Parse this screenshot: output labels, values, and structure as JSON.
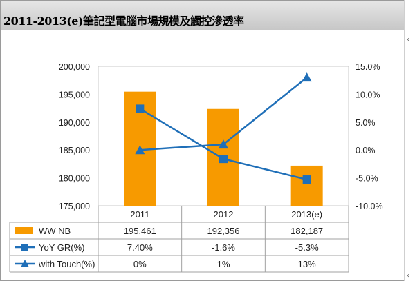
{
  "header": {
    "title": "2011-2013(e)筆記型電腦市場規模及觸控滲透率"
  },
  "side_marks": [
    "‹",
    "‹"
  ],
  "chart_data": {
    "type": "bar",
    "categories": [
      "2011",
      "2012",
      "2013(e)"
    ],
    "series": [
      {
        "name": "WW NB",
        "type": "bar",
        "axis": "left",
        "color": "#f79a00",
        "values": [
          195461,
          192356,
          182187
        ],
        "labels": [
          "195,461",
          "192,356",
          "182,187"
        ]
      },
      {
        "name": "YoY GR(%)",
        "type": "line",
        "axis": "right",
        "marker": "square",
        "color": "#1f6fb8",
        "values": [
          7.4,
          -1.6,
          -5.3
        ],
        "labels": [
          "7.40%",
          "-1.6%",
          "-5.3%"
        ]
      },
      {
        "name": "with Touch(%)",
        "type": "line",
        "axis": "right",
        "marker": "triangle",
        "color": "#1f6fb8",
        "values": [
          0,
          1,
          13
        ],
        "labels": [
          "0%",
          "1%",
          "13%"
        ]
      }
    ],
    "ylim_left": [
      175000,
      200000
    ],
    "yticks_left": [
      "200,000",
      "195,000",
      "190,000",
      "185,000",
      "180,000",
      "175,000"
    ],
    "ylim_right": [
      -10,
      15
    ],
    "yticks_right": [
      "15.0%",
      "10.0%",
      "5.0%",
      "0.0%",
      "-5.0%",
      "-10.0%"
    ],
    "grid": false,
    "legend": "data-table"
  }
}
